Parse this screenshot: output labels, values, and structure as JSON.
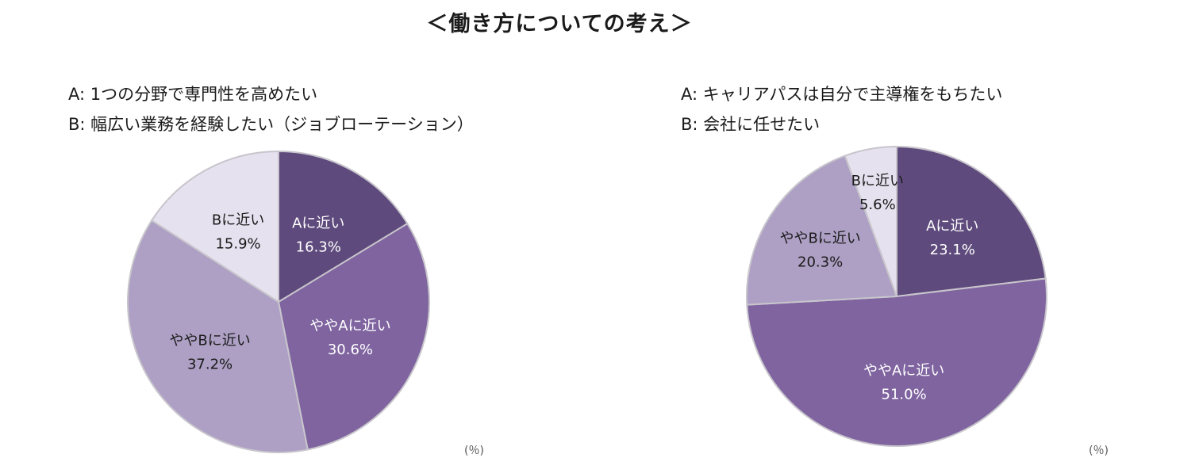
{
  "title": "＜働き方についての考え＞",
  "charts": [
    {
      "legend": [
        "A: 1つの分野で専門性を高めたい",
        "B: 幅広い業務を経験したい（ジョブローテーション）"
      ],
      "source": "(％)"
    },
    {
      "legend": [
        "A: キャリアパスは自分で主導権をもちたい",
        "B: 会社に任せたい"
      ],
      "source": "(％)"
    }
  ],
  "chart_data": [
    {
      "type": "pie",
      "legend": [
        "A: 1つの分野で専門性を高めたい",
        "B: 幅広い業務を経験したい（ジョブローテーション）"
      ],
      "slices": [
        {
          "label": "Aに近い",
          "value": 16.3,
          "value_label": "16.3%",
          "color": "#5e4a7c",
          "text_color": "#ffffff"
        },
        {
          "label": "ややAに近い",
          "value": 30.6,
          "value_label": "30.6%",
          "color": "#7f64a0",
          "text_color": "#ffffff"
        },
        {
          "label": "ややBに近い",
          "value": 37.2,
          "value_label": "37.2%",
          "color": "#ada0c4",
          "text_color": "#1a1a1a"
        },
        {
          "label": "Bに近い",
          "value": 15.9,
          "value_label": "15.9%",
          "color": "#e6e1ee",
          "text_color": "#1a1a1a"
        }
      ]
    },
    {
      "type": "pie",
      "legend": [
        "A: キャリアパスは自分で主導権をもちたい",
        "B: 会社に任せたい"
      ],
      "slices": [
        {
          "label": "Aに近い",
          "value": 23.1,
          "value_label": "23.1%",
          "color": "#5e4a7c",
          "text_color": "#ffffff"
        },
        {
          "label": "ややAに近い",
          "value": 51.0,
          "value_label": "51.0%",
          "color": "#7f64a0",
          "text_color": "#ffffff"
        },
        {
          "label": "ややBに近い",
          "value": 20.3,
          "value_label": "20.3%",
          "color": "#ada0c4",
          "text_color": "#1a1a1a"
        },
        {
          "label": "Bに近い",
          "value": 5.6,
          "value_label": "5.6%",
          "color": "#e6e1ee",
          "text_color": "#1a1a1a"
        }
      ]
    }
  ]
}
